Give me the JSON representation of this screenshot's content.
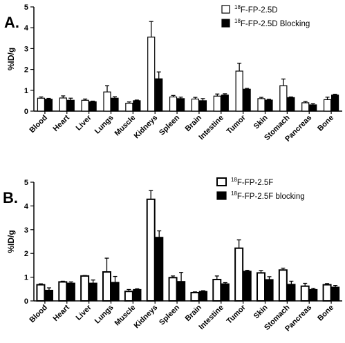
{
  "chart_data": [
    {
      "type": "bar",
      "panel_label": "A.",
      "ylabel": "%ID/g",
      "ylim": [
        0,
        5
      ],
      "yticks": [
        "0",
        "1",
        "2",
        "3",
        "4",
        "5"
      ],
      "categories": [
        "Blood",
        "Heart",
        "Liver",
        "Lungs",
        "Muscle",
        "Kidneys",
        "Spleen",
        "Brain",
        "Intestine",
        "Tumor",
        "Skin",
        "Stomach",
        "Pancreas",
        "Bone"
      ],
      "legend_position": "top-right",
      "series": [
        {
          "legend_sup": "18",
          "legend_text": "F-FP-2.5D",
          "fill": "#ffffff",
          "values": [
            0.62,
            0.63,
            0.52,
            0.92,
            0.38,
            3.55,
            0.68,
            0.58,
            0.72,
            1.92,
            0.6,
            1.22,
            0.4,
            0.55
          ],
          "errors": [
            0.06,
            0.1,
            0.06,
            0.3,
            0.06,
            0.75,
            0.07,
            0.08,
            0.1,
            0.38,
            0.06,
            0.32,
            0.06,
            0.12
          ]
        },
        {
          "legend_sup": "18",
          "legend_text": "F-FP-2.5D Blocking",
          "fill": "#000000",
          "values": [
            0.57,
            0.52,
            0.45,
            0.62,
            0.5,
            1.55,
            0.6,
            0.5,
            0.77,
            1.05,
            0.53,
            0.65,
            0.3,
            0.77
          ],
          "errors": [
            0.04,
            0.1,
            0.03,
            0.07,
            0.03,
            0.33,
            0.07,
            0.1,
            0.06,
            0.04,
            0.04,
            0.03,
            0.06,
            0.04
          ]
        }
      ]
    },
    {
      "type": "bar",
      "panel_label": "B.",
      "ylabel": "%ID/g",
      "ylim": [
        0,
        5
      ],
      "yticks": [
        "0",
        "1",
        "2",
        "3",
        "4",
        "5"
      ],
      "categories": [
        "Blood",
        "Heart",
        "Liver",
        "Lungs",
        "Muscle",
        "Kidneys",
        "Spleen",
        "Brain",
        "Intestine",
        "Tumor",
        "Skin",
        "Stomach",
        "Pancreas",
        "Bone"
      ],
      "legend_position": "top-right",
      "series": [
        {
          "legend_sup": "18",
          "legend_text": "F-FP-2.5F",
          "fill": "#ffffff",
          "values": [
            0.68,
            0.8,
            1.05,
            1.22,
            0.4,
            4.28,
            0.98,
            0.35,
            0.9,
            2.22,
            1.18,
            1.3,
            0.62,
            0.68
          ],
          "errors": [
            0.04,
            0.03,
            0.02,
            0.58,
            0.08,
            0.37,
            0.07,
            0.03,
            0.15,
            0.35,
            0.1,
            0.08,
            0.12,
            0.05
          ]
        },
        {
          "legend_sup": "18",
          "legend_text": "F-FP-2.5F blocking",
          "fill": "#000000",
          "values": [
            0.45,
            0.75,
            0.75,
            0.78,
            0.48,
            2.68,
            0.82,
            0.4,
            0.72,
            1.25,
            0.9,
            0.7,
            0.48,
            0.58
          ],
          "errors": [
            0.1,
            0.05,
            0.13,
            0.25,
            0.03,
            0.27,
            0.38,
            0.03,
            0.05,
            0.04,
            0.12,
            0.13,
            0.05,
            0.07
          ]
        }
      ]
    }
  ]
}
